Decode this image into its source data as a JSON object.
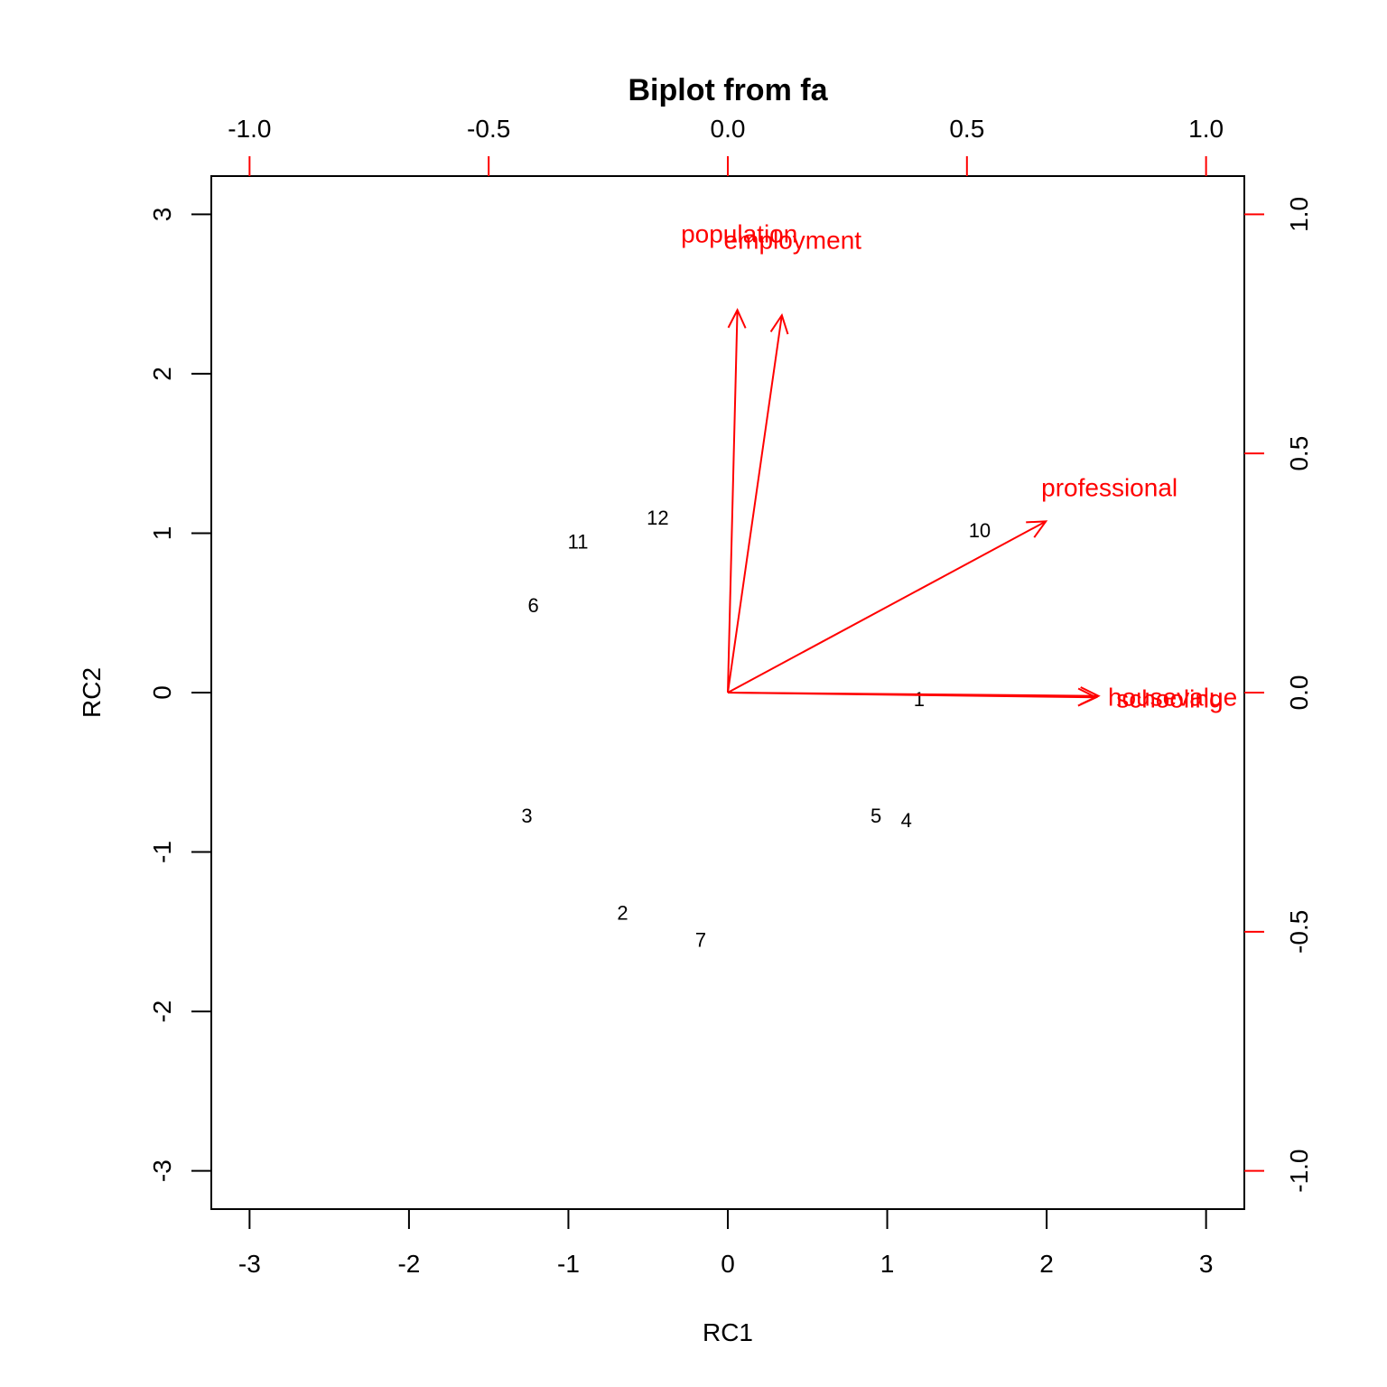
{
  "chart_data": {
    "type": "scatter",
    "title": "Biplot from fa",
    "xlabel": "RC1",
    "ylabel": "RC2",
    "xlim": [
      -3.24,
      3.24
    ],
    "ylim": [
      -3.24,
      3.24
    ],
    "x_ticks": [
      -3,
      -2,
      -1,
      0,
      1,
      2,
      3
    ],
    "y_ticks": [
      -3,
      -2,
      -1,
      0,
      1,
      2,
      3
    ],
    "loadings_lim": [
      -1.08,
      1.08
    ],
    "loadings_ticks": [
      -1.0,
      -0.5,
      0.0,
      0.5,
      1.0
    ],
    "loadings_tick_labels": [
      "-1.0",
      "-0.5",
      "0.0",
      "0.5",
      "1.0"
    ],
    "grid": false,
    "colors": {
      "points": "#000000",
      "loadings": "#ff0000"
    },
    "points": [
      {
        "label": "1",
        "x": 1.2,
        "y": -0.04
      },
      {
        "label": "2",
        "x": -0.66,
        "y": -1.38
      },
      {
        "label": "3",
        "x": -1.26,
        "y": -0.77
      },
      {
        "label": "4",
        "x": 1.12,
        "y": -0.8
      },
      {
        "label": "5",
        "x": 0.93,
        "y": -0.77
      },
      {
        "label": "6",
        "x": -1.22,
        "y": 0.55
      },
      {
        "label": "7",
        "x": -0.17,
        "y": -1.55
      },
      {
        "label": "10",
        "x": 1.58,
        "y": 1.02
      },
      {
        "label": "11",
        "x": -0.94,
        "y": 0.95
      },
      {
        "label": "12",
        "x": -0.44,
        "y": 1.1
      }
    ],
    "loadings": [
      {
        "name": "population",
        "x": 0.02,
        "y": 0.8
      },
      {
        "name": "employment",
        "x": 0.113,
        "y": 0.789
      },
      {
        "name": "professional",
        "x": 0.665,
        "y": 0.358
      },
      {
        "name": "schooling",
        "x": 0.77,
        "y": -0.01
      },
      {
        "name": "housevalue",
        "x": 0.775,
        "y": -0.007
      }
    ]
  }
}
